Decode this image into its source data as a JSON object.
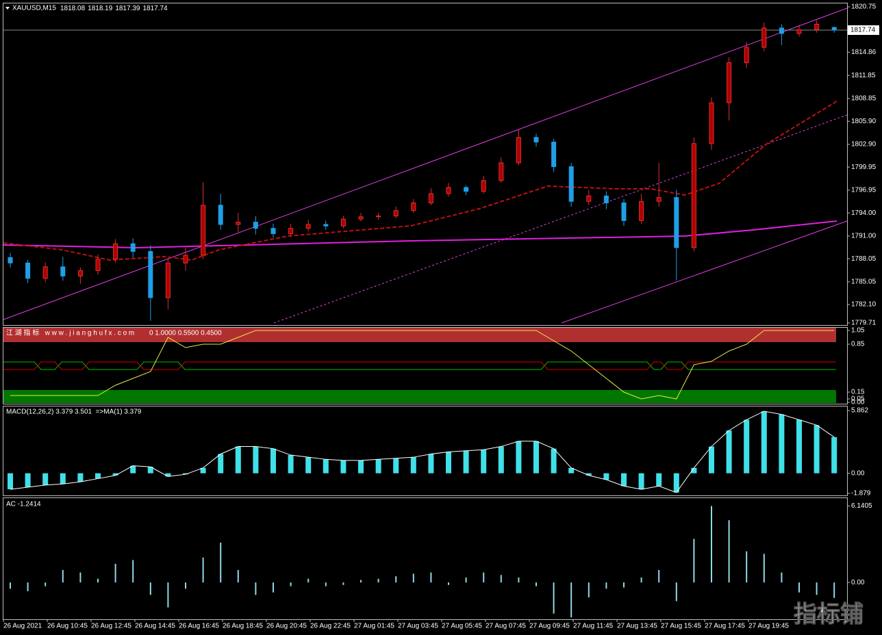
{
  "header": {
    "symbol": "XAUUSD,M15",
    "ohlc": [
      1818.08,
      1818.19,
      1817.39,
      1817.74
    ]
  },
  "price_panel": {
    "ylim": [
      1779.71,
      1820.75
    ],
    "yticks": [
      {
        "value": 1820.75,
        "label": "1820.75"
      },
      {
        "value": 1814.86,
        "label": "1814.86"
      },
      {
        "value": 1811.85,
        "label": "1811.85"
      },
      {
        "value": 1808.85,
        "label": "1808.85"
      },
      {
        "value": 1805.9,
        "label": "1805.90"
      },
      {
        "value": 1802.9,
        "label": "1802.90"
      },
      {
        "value": 1799.95,
        "label": "1799.95"
      },
      {
        "value": 1796.95,
        "label": "1796.95"
      },
      {
        "value": 1794,
        "label": "1794.00"
      },
      {
        "value": 1791,
        "label": "1791.00"
      },
      {
        "value": 1788.05,
        "label": "1788.05"
      },
      {
        "value": 1785.05,
        "label": "1785.05"
      },
      {
        "value": 1782.1,
        "label": "1782.10"
      },
      {
        "value": 1779.71,
        "label": "1779.71"
      }
    ],
    "bid": 1817.74,
    "up_color": "#b00000",
    "down_color": "#1e9fe6",
    "candles": [
      [
        1788.2,
        1788.8,
        1786.9,
        1787.5
      ],
      [
        1787.5,
        1787.9,
        1784.9,
        1785.5
      ],
      [
        1785.5,
        1787.6,
        1785.0,
        1787.0
      ],
      [
        1787.0,
        1788.3,
        1785.2,
        1785.8
      ],
      [
        1785.8,
        1786.9,
        1784.8,
        1786.5
      ],
      [
        1786.5,
        1788.6,
        1786.0,
        1788.0
      ],
      [
        1788.0,
        1790.6,
        1787.5,
        1790.0
      ],
      [
        1790.0,
        1790.7,
        1788.2,
        1789.0
      ],
      [
        1789.0,
        1789.8,
        1780.0,
        1783.0
      ],
      [
        1783.0,
        1788.0,
        1781.5,
        1787.5
      ],
      [
        1787.5,
        1789.5,
        1786.5,
        1788.5
      ],
      [
        1788.5,
        1798.0,
        1788.0,
        1795.0
      ],
      [
        1795.0,
        1796.5,
        1791.8,
        1792.5
      ],
      [
        1792.5,
        1794.0,
        1791.5,
        1792.8
      ],
      [
        1792.8,
        1793.6,
        1791.2,
        1792.0
      ],
      [
        1792.0,
        1792.6,
        1790.8,
        1791.3
      ],
      [
        1791.3,
        1792.6,
        1790.9,
        1792.0
      ],
      [
        1792.0,
        1793.1,
        1791.6,
        1792.5
      ],
      [
        1792.5,
        1793.0,
        1791.8,
        1792.3
      ],
      [
        1792.3,
        1793.6,
        1792.0,
        1793.2
      ],
      [
        1793.2,
        1794.0,
        1792.9,
        1793.5
      ],
      [
        1793.5,
        1794.0,
        1793.1,
        1793.6
      ],
      [
        1793.6,
        1794.8,
        1793.3,
        1794.3
      ],
      [
        1794.3,
        1795.8,
        1794.0,
        1795.3
      ],
      [
        1795.3,
        1797.2,
        1795.0,
        1796.5
      ],
      [
        1796.5,
        1797.9,
        1796.1,
        1797.3
      ],
      [
        1797.3,
        1797.6,
        1796.3,
        1796.8
      ],
      [
        1796.8,
        1798.8,
        1796.5,
        1798.2
      ],
      [
        1798.2,
        1801.2,
        1797.9,
        1800.5
      ],
      [
        1800.5,
        1804.8,
        1800.2,
        1803.8
      ],
      [
        1803.8,
        1804.3,
        1802.6,
        1803.2
      ],
      [
        1803.2,
        1803.6,
        1799.3,
        1800.0
      ],
      [
        1800.0,
        1800.5,
        1794.8,
        1795.5
      ],
      [
        1795.5,
        1797.0,
        1795.0,
        1796.2
      ],
      [
        1796.2,
        1796.8,
        1794.5,
        1795.3
      ],
      [
        1795.3,
        1795.8,
        1792.3,
        1793.0
      ],
      [
        1793.0,
        1796.5,
        1792.6,
        1795.5
      ],
      [
        1795.5,
        1800.5,
        1794.8,
        1796.0
      ],
      [
        1796.0,
        1797.0,
        1785.2,
        1789.5
      ],
      [
        1789.5,
        1803.8,
        1789.0,
        1803.0
      ],
      [
        1803.0,
        1809.0,
        1802.2,
        1808.3
      ],
      [
        1808.3,
        1814.2,
        1806.0,
        1813.5
      ],
      [
        1813.5,
        1816.2,
        1812.8,
        1815.5
      ],
      [
        1815.5,
        1818.7,
        1815.0,
        1818.0
      ],
      [
        1818.0,
        1818.5,
        1815.8,
        1817.3
      ],
      [
        1817.3,
        1818.4,
        1816.9,
        1817.8
      ],
      [
        1817.8,
        1819.0,
        1817.4,
        1818.5
      ],
      [
        1818.08,
        1818.19,
        1817.39,
        1817.74
      ]
    ]
  },
  "jianghu_panel": {
    "label": "江 湖 指 标 &nbsp; w w w . j i a n g h u f x . c o m",
    "params": "0 1.0000 0.5500 0.4500",
    "ylim": [
      -0.02,
      1.08
    ],
    "yticks": [
      1.05,
      0.85,
      0.15,
      0.05,
      {
        "value": 0,
        "label": "0.00"
      }
    ],
    "line_color": "#e8e84a",
    "values": [
      0.1,
      0.1,
      0.1,
      0.1,
      0.1,
      0.1,
      0.25,
      0.35,
      0.45,
      0.95,
      0.8,
      0.85,
      0.85,
      0.95,
      1.05,
      1.05,
      1.05,
      1.05,
      1.05,
      1.05,
      1.05,
      1.05,
      1.05,
      1.05,
      1.05,
      1.05,
      1.05,
      1.05,
      1.05,
      1.05,
      1.05,
      0.9,
      0.75,
      0.55,
      0.35,
      0.15,
      0.05,
      0.1,
      0.05,
      0.55,
      0.6,
      0.75,
      0.85,
      1.05,
      1.05,
      1.05,
      1.05,
      1.05
    ]
  },
  "macd_panel": {
    "label": "MACD(12,26,2) 3.379 3.501 &nbsp;=>MA(1) 3.379",
    "ylim": [
      -1.879,
      5.862
    ],
    "yticks": [
      5.862,
      {
        "value": 0,
        "label": "0.00"
      },
      -1.879
    ],
    "color": "#40e0e8",
    "values": [
      -1.5,
      -1.3,
      -1.1,
      -1.0,
      -0.8,
      -0.5,
      -0.2,
      0.7,
      0.6,
      -0.3,
      -0.1,
      0.5,
      1.8,
      2.5,
      2.5,
      2.3,
      1.7,
      1.5,
      1.3,
      1.2,
      1.2,
      1.3,
      1.4,
      1.5,
      1.8,
      2.0,
      2.1,
      2.2,
      2.5,
      3.0,
      3.0,
      2.3,
      0.5,
      -0.2,
      -0.6,
      -1.2,
      -1.5,
      -1.2,
      -1.8,
      0.5,
      2.5,
      4.0,
      5.0,
      5.8,
      5.5,
      5.0,
      4.5,
      3.379
    ]
  },
  "ac_panel": {
    "label": "AC -1.2414",
    "ylim": [
      -2.9,
      6.55
    ],
    "yticks": [
      6.1405,
      {
        "value": 0,
        "label": "0.00"
      }
    ],
    "color": "#8fdbe6",
    "values": [
      -0.5,
      -0.7,
      -0.3,
      1.0,
      0.8,
      0.3,
      1.5,
      1.8,
      -1.0,
      -2.0,
      -0.5,
      2.0,
      3.2,
      1.0,
      -1.0,
      -0.8,
      -0.3,
      0.3,
      -0.3,
      -0.2,
      0.2,
      0.3,
      0.5,
      0.7,
      0.8,
      -0.2,
      0.4,
      0.8,
      0.6,
      0.4,
      -0.3,
      -2.5,
      -2.8,
      -1.2,
      -0.5,
      -0.4,
      0.4,
      1.0,
      -1.5,
      3.5,
      6.1405,
      5.0,
      2.5,
      2.3,
      0.8,
      -0.8,
      -1.0,
      -1.2414
    ]
  },
  "time_axis": [
    "26 Aug 2021",
    "26 Aug 10:45",
    "26 Aug 12:45",
    "26 Aug 14:45",
    "26 Aug 16:45",
    "26 Aug 18:45",
    "26 Aug 20:45",
    "26 Aug 22:45",
    "27 Aug 01:45",
    "27 Aug 03:45",
    "27 Aug 05:45",
    "27 Aug 07:45",
    "27 Aug 09:45",
    "27 Aug 11:45",
    "27 Aug 13:45",
    "27 Aug 15:45",
    "27 Aug 17:45",
    "27 Aug 19:45"
  ],
  "watermark": "指标铺"
}
